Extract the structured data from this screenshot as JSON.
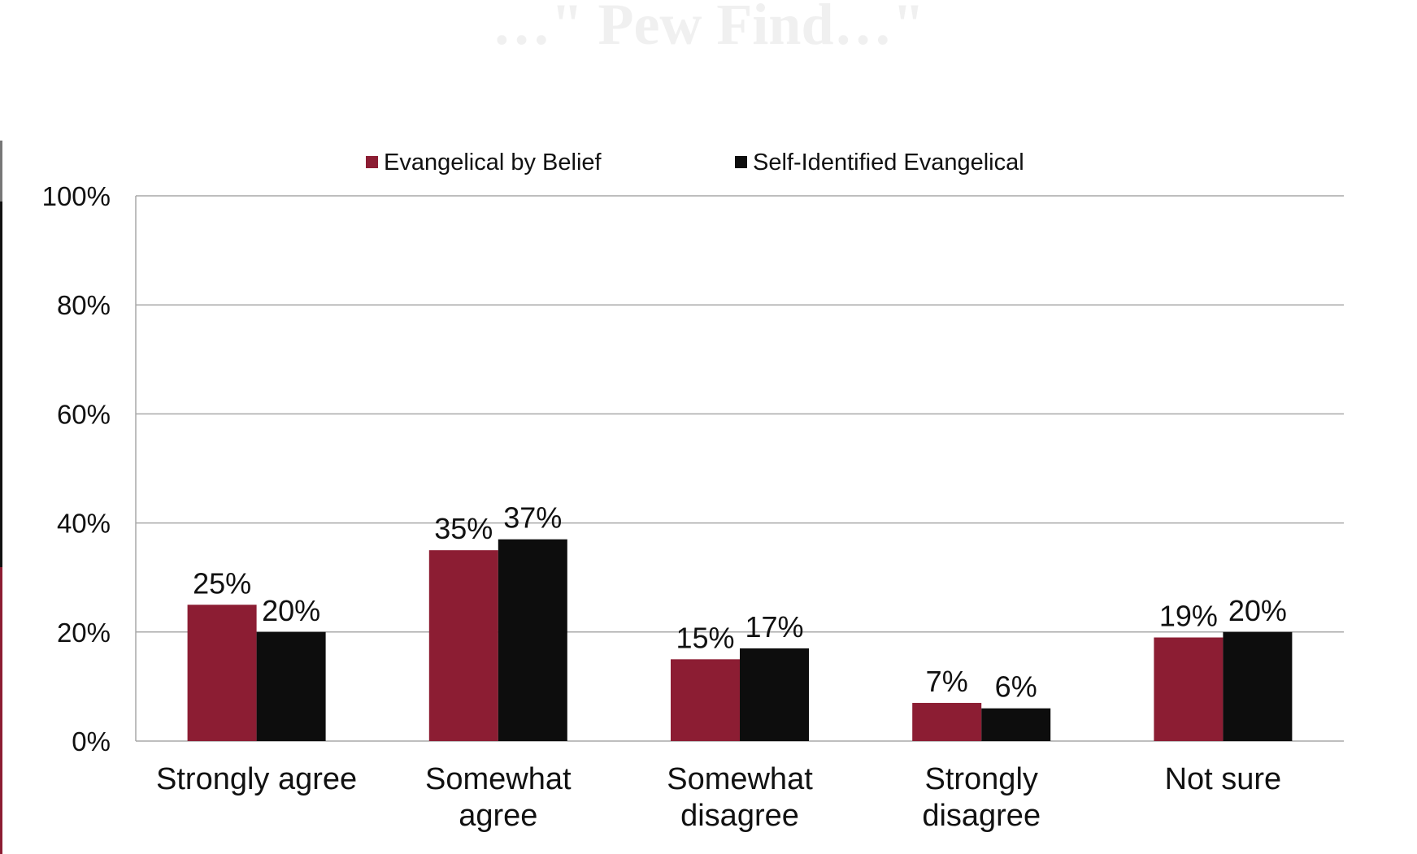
{
  "page_title": "…\" Pew Find…\"",
  "colors": {
    "belief": "#8c1d33",
    "self": "#0d0d0d",
    "grid": "#a8a8a8",
    "text": "#111111",
    "edge_gray": "#777777",
    "edge_black": "#111111",
    "edge_red": "#8c1d33"
  },
  "chart_data": {
    "type": "bar",
    "title": "",
    "xlabel": "",
    "ylabel": "",
    "ylim": [
      0,
      100
    ],
    "yticks": [
      0,
      20,
      40,
      60,
      80,
      100
    ],
    "ytick_labels": [
      "0%",
      "20%",
      "40%",
      "60%",
      "80%",
      "100%"
    ],
    "categories": [
      [
        "Strongly agree"
      ],
      [
        "Somewhat",
        "agree"
      ],
      [
        "Somewhat",
        "disagree"
      ],
      [
        "Strongly",
        "disagree"
      ],
      [
        "Not sure"
      ]
    ],
    "series": [
      {
        "name": "Evangelical by Belief",
        "color_key": "belief",
        "values": [
          25,
          35,
          15,
          7,
          19
        ],
        "labels": [
          "25%",
          "35%",
          "15%",
          "7%",
          "19%"
        ]
      },
      {
        "name": "Self-Identified Evangelical",
        "color_key": "self",
        "values": [
          20,
          37,
          17,
          6,
          20
        ],
        "labels": [
          "20%",
          "37%",
          "17%",
          "6%",
          "20%"
        ]
      }
    ],
    "legend_position": "top-center",
    "grid": true
  }
}
